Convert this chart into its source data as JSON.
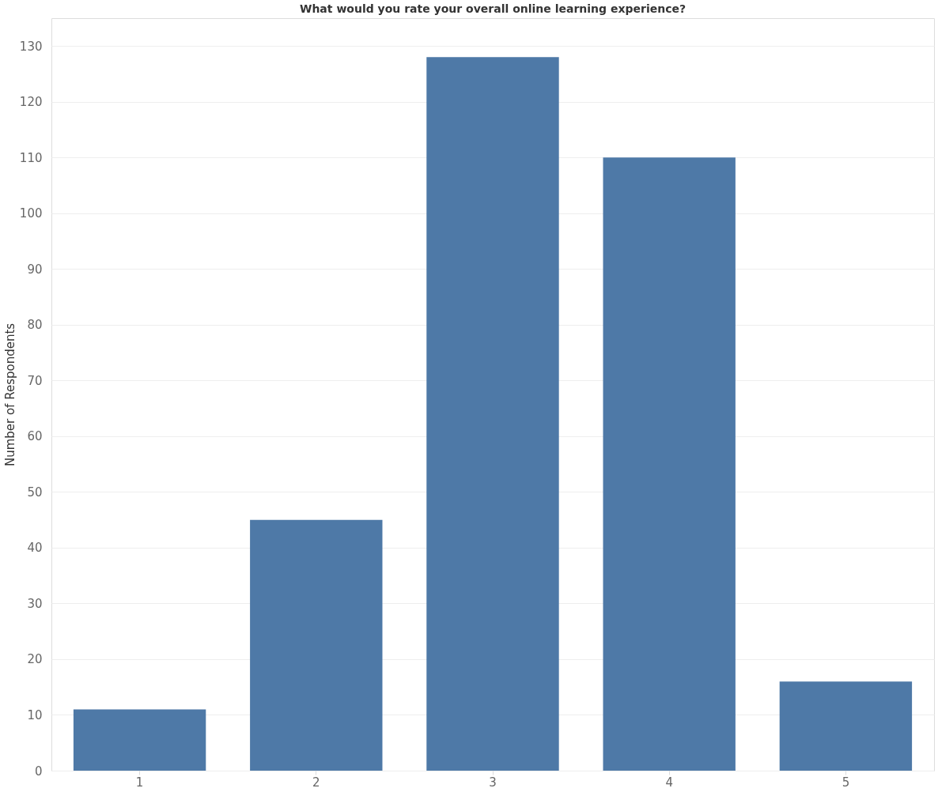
{
  "chart_data": {
    "type": "bar",
    "title": "What would you rate your overall online learning experience?",
    "ylabel": "Number of Respondents",
    "categories": [
      "1",
      "2",
      "3",
      "4",
      "5"
    ],
    "values": [
      11,
      45,
      128,
      110,
      16
    ],
    "color": "#4e79a7",
    "ylim": [
      0,
      135
    ],
    "yticks": [
      0,
      10,
      20,
      30,
      40,
      50,
      60,
      70,
      80,
      90,
      100,
      110,
      120,
      130
    ],
    "grid": "y"
  }
}
